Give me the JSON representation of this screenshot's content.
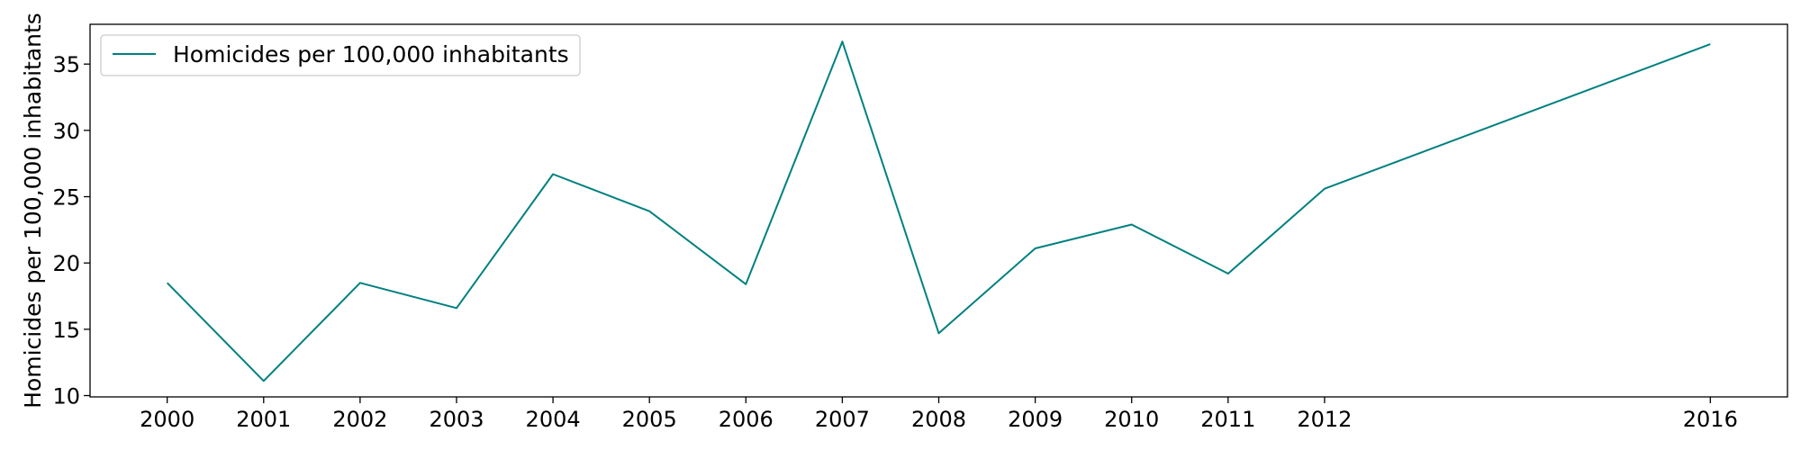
{
  "chart_data": {
    "type": "line",
    "title": "",
    "xlabel": "",
    "ylabel": "Homicides per 100,000 inhabitants",
    "x": [
      2000,
      2001,
      2002,
      2003,
      2004,
      2005,
      2006,
      2007,
      2008,
      2009,
      2010,
      2011,
      2012,
      2016
    ],
    "x_ticks": [
      2000,
      2001,
      2002,
      2003,
      2004,
      2005,
      2006,
      2007,
      2008,
      2009,
      2010,
      2011,
      2012,
      2016
    ],
    "y_ticks": [
      10,
      15,
      20,
      25,
      30,
      35
    ],
    "xlim": [
      1999.2,
      2016.8
    ],
    "ylim": [
      9.9,
      38.0
    ],
    "grid": false,
    "legend_position": "top-left",
    "series": [
      {
        "name": "Homicides per 100,000 inhabitants",
        "color": "#008080",
        "values": [
          18.5,
          11.1,
          18.5,
          16.6,
          26.7,
          23.9,
          18.4,
          36.7,
          14.7,
          21.1,
          22.9,
          19.2,
          25.6,
          36.5
        ]
      }
    ]
  }
}
